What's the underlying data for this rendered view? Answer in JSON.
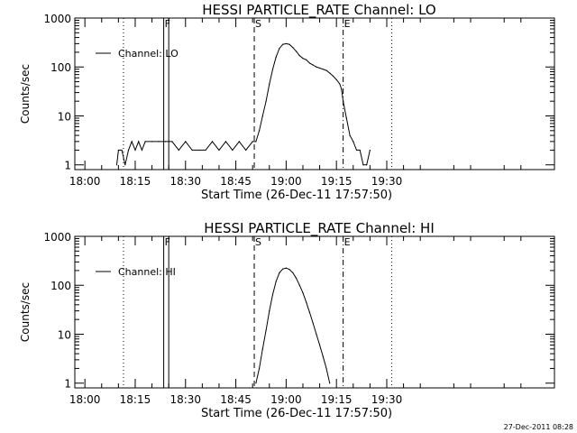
{
  "timestamp": "27-Dec-2011 08:28",
  "chart_data": [
    {
      "type": "line",
      "title": "HESSI PARTICLE_RATE Channel: LO",
      "xlabel": "Start Time (26-Dec-11 17:57:50)",
      "ylabel": "Counts/sec",
      "y_scale": "log",
      "ylim": [
        0.8,
        1000
      ],
      "xlim_min": [
        -3,
        140
      ],
      "x_ticks": [
        {
          "min": 0,
          "label": "18:00"
        },
        {
          "min": 15,
          "label": "18:15"
        },
        {
          "min": 30,
          "label": "18:30"
        },
        {
          "min": 45,
          "label": "18:45"
        },
        {
          "min": 60,
          "label": "19:00"
        },
        {
          "min": 75,
          "label": "19:15"
        },
        {
          "min": 90,
          "label": "19:30"
        }
      ],
      "y_ticks": [
        {
          "value": 1,
          "label": "1"
        },
        {
          "value": 10,
          "label": "10"
        },
        {
          "value": 100,
          "label": "100"
        },
        {
          "value": 1000,
          "label": "1000"
        }
      ],
      "legend": {
        "label": "Channel: LO",
        "position": "top-left"
      },
      "markers": [
        {
          "label": "F",
          "min": 23.5,
          "style": "solid"
        },
        {
          "label": "",
          "min": 25.0,
          "style": "solid"
        },
        {
          "label": "S",
          "min": 50.5,
          "style": "dashed"
        },
        {
          "label": "E",
          "min": 77.0,
          "style": "dashdot"
        }
      ],
      "dotted_lines_min": [
        11.5,
        91.5
      ],
      "series": [
        {
          "name": "Channel: LO",
          "x": [
            9.5,
            10,
            11,
            12,
            13,
            14,
            15,
            16,
            17,
            18,
            20,
            22,
            24,
            26,
            28,
            30,
            32,
            34,
            36,
            38,
            40,
            42,
            44,
            46,
            48,
            50,
            51,
            52,
            53,
            54,
            55,
            56,
            57,
            58,
            59,
            60,
            61,
            62,
            63,
            64,
            65,
            66,
            67,
            68,
            69,
            70,
            71,
            72,
            73,
            74,
            75,
            76,
            76.5,
            77,
            78,
            79,
            80,
            81,
            82,
            83,
            84,
            85
          ],
          "y": [
            1,
            2,
            2,
            1,
            2,
            3,
            2,
            3,
            2,
            3,
            3,
            3,
            3,
            3,
            2,
            3,
            2,
            2,
            2,
            3,
            2,
            3,
            2,
            3,
            2,
            3,
            3,
            5,
            10,
            20,
            45,
            90,
            160,
            240,
            290,
            300,
            290,
            250,
            210,
            170,
            150,
            140,
            120,
            110,
            100,
            95,
            90,
            85,
            75,
            65,
            55,
            45,
            35,
            20,
            9,
            4,
            3,
            2,
            2,
            1,
            1,
            2
          ]
        }
      ]
    },
    {
      "type": "line",
      "title": "HESSI PARTICLE_RATE Channel: HI",
      "xlabel": "Start Time (26-Dec-11 17:57:50)",
      "ylabel": "Counts/sec",
      "y_scale": "log",
      "ylim": [
        0.8,
        1000
      ],
      "xlim_min": [
        -3,
        140
      ],
      "x_ticks": [
        {
          "min": 0,
          "label": "18:00"
        },
        {
          "min": 15,
          "label": "18:15"
        },
        {
          "min": 30,
          "label": "18:30"
        },
        {
          "min": 45,
          "label": "18:45"
        },
        {
          "min": 60,
          "label": "19:00"
        },
        {
          "min": 75,
          "label": "19:15"
        },
        {
          "min": 90,
          "label": "19:30"
        }
      ],
      "y_ticks": [
        {
          "value": 1,
          "label": "1"
        },
        {
          "value": 10,
          "label": "10"
        },
        {
          "value": 100,
          "label": "100"
        },
        {
          "value": 1000,
          "label": "1000"
        }
      ],
      "legend": {
        "label": "Channel: HI",
        "position": "top-left"
      },
      "markers": [
        {
          "label": "F",
          "min": 23.5,
          "style": "solid"
        },
        {
          "label": "",
          "min": 25.0,
          "style": "solid"
        },
        {
          "label": "S",
          "min": 50.5,
          "style": "dashed"
        },
        {
          "label": "E",
          "min": 77.0,
          "style": "dashdot"
        }
      ],
      "dotted_lines_min": [
        11.5,
        91.5
      ],
      "series": [
        {
          "name": "Channel: HI",
          "x": [
            51,
            52,
            53,
            54,
            55,
            56,
            57,
            58,
            59,
            60,
            61,
            62,
            63,
            64,
            65,
            66,
            67,
            68,
            69,
            70,
            71,
            72,
            73
          ],
          "y": [
            1,
            2,
            5,
            12,
            30,
            65,
            120,
            180,
            215,
            225,
            210,
            180,
            140,
            100,
            70,
            45,
            28,
            17,
            10,
            6,
            3.5,
            2,
            1
          ]
        }
      ]
    }
  ]
}
